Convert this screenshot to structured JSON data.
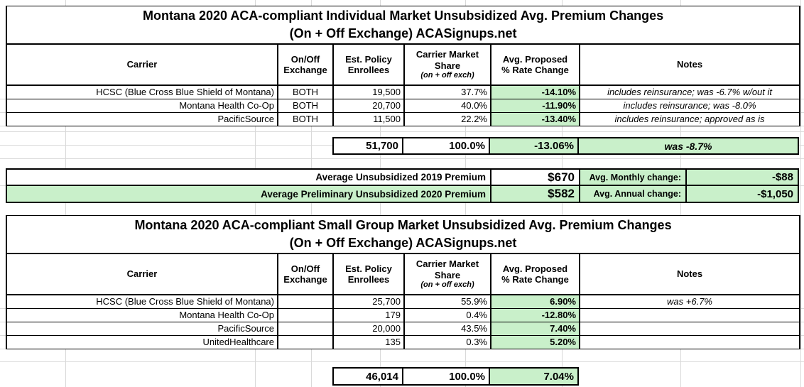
{
  "colors": {
    "highlight_green": "#c9f0ca",
    "grid_line": "#d9d9d9",
    "table_border": "#000000"
  },
  "table1": {
    "title1": "Montana 2020 ACA-compliant Individual Market Unsubsidized Avg. Premium Changes",
    "title2": "(On + Off Exchange) ACASignups.net",
    "headers": {
      "carrier": "Carrier",
      "exchange": "On/Off Exchange",
      "enrollees": "Est. Policy Enrollees",
      "share_l1": "Carrier Market",
      "share_l2": "Share",
      "share_sub": "(on + off exch)",
      "rate_l1": "Avg. Proposed",
      "rate_l2": "% Rate Change",
      "notes": "Notes"
    },
    "rows": [
      {
        "carrier": "HCSC (Blue Cross Blue Shield of Montana)",
        "exchange": "BOTH",
        "enrollees": "19,500",
        "share": "37.7%",
        "rate": "-14.10%",
        "note": "includes reinsurance; was -6.7% w/out it"
      },
      {
        "carrier": "Montana Health Co-Op",
        "exchange": "BOTH",
        "enrollees": "20,700",
        "share": "40.0%",
        "rate": "-11.90%",
        "note": "includes reinsurance; was -8.0%"
      },
      {
        "carrier": "PacificSource",
        "exchange": "BOTH",
        "enrollees": "11,500",
        "share": "22.2%",
        "rate": "-13.40%",
        "note": "includes reinsurance; approved as is"
      }
    ],
    "summary": {
      "enrollees": "51,700",
      "share": "100.0%",
      "rate": "-13.06%",
      "note": "was -8.7%"
    }
  },
  "averages": {
    "rows": [
      {
        "label": "Average Unsubsidized 2019 Premium",
        "value": "$670",
        "label2": "Avg. Monthly change:",
        "value2": "-$88"
      },
      {
        "label": "Average Preliminary Unsubsidized 2020 Premium",
        "value": "$582",
        "label2": "Avg. Annual change:",
        "value2": "-$1,050"
      }
    ]
  },
  "table2": {
    "title1": "Montana 2020 ACA-compliant Small Group Market Unsubsidized Avg. Premium Changes",
    "title2": "(On + Off Exchange) ACASignups.net",
    "headers": {
      "carrier": "Carrier",
      "exchange": "On/Off Exchange",
      "enrollees": "Est. Policy Enrollees",
      "share_l1": "Carrier Market",
      "share_l2": "Share",
      "share_sub": "(on + off exch)",
      "rate_l1": "Avg. Proposed",
      "rate_l2": "% Rate Change",
      "notes": "Notes"
    },
    "rows": [
      {
        "carrier": "HCSC (Blue Cross Blue Shield of Montana)",
        "exchange": "",
        "enrollees": "25,700",
        "share": "55.9%",
        "rate": "6.90%",
        "note": "was +6.7%"
      },
      {
        "carrier": "Montana Health Co-Op",
        "exchange": "",
        "enrollees": "179",
        "share": "0.4%",
        "rate": "-12.80%",
        "note": ""
      },
      {
        "carrier": "PacificSource",
        "exchange": "",
        "enrollees": "20,000",
        "share": "43.5%",
        "rate": "7.40%",
        "note": ""
      },
      {
        "carrier": "UnitedHealthcare",
        "exchange": "",
        "enrollees": "135",
        "share": "0.3%",
        "rate": "5.20%",
        "note": ""
      }
    ],
    "summary": {
      "enrollees": "46,014",
      "share": "100.0%",
      "rate": "7.04%"
    }
  }
}
